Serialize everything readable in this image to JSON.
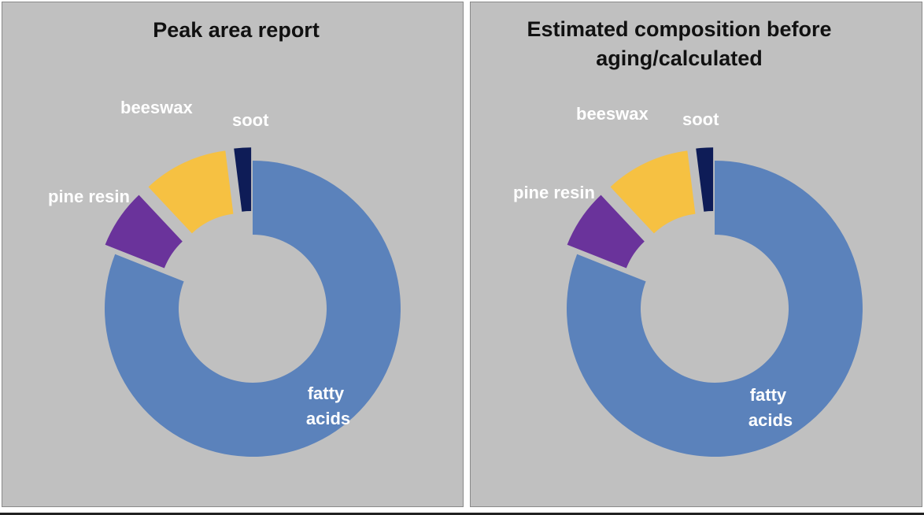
{
  "chart_data": [
    {
      "type": "pie",
      "variant": "exploded-doughnut",
      "title": "Peak area report",
      "categories": [
        "fatty acids",
        "pine resin",
        "beeswax",
        "soot"
      ],
      "values": [
        0.81,
        0.07,
        0.1,
        0.02
      ],
      "colors": [
        "#5b82bb",
        "#6a339b",
        "#f6c142",
        "#0e1c57"
      ],
      "legend": "none (labels on slices)"
    },
    {
      "type": "pie",
      "variant": "exploded-doughnut",
      "title": "Estimated composition before aging/calculated",
      "categories": [
        "fatty acids",
        "pine resin",
        "beeswax",
        "soot"
      ],
      "values": [
        0.81,
        0.07,
        0.1,
        0.02
      ],
      "colors": [
        "#5b82bb",
        "#6a339b",
        "#f6c142",
        "#0e1c57"
      ],
      "legend": "none (labels on slices)"
    }
  ]
}
